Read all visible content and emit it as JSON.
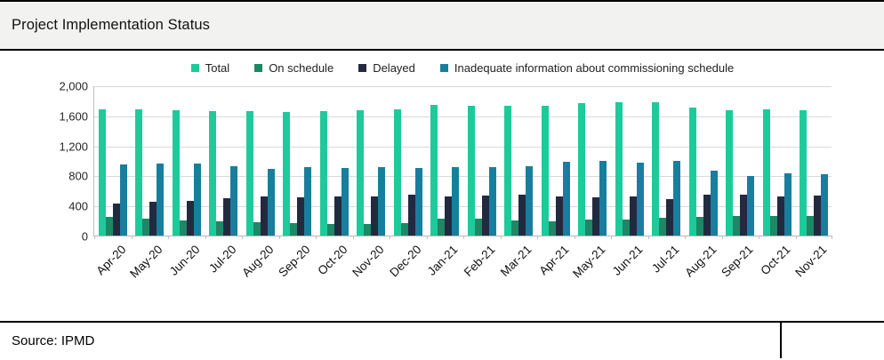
{
  "header": {
    "title": "Project Implementation Status"
  },
  "footer": {
    "source": "Source: IPMD"
  },
  "colors": {
    "total": "#1dcb9a",
    "on_schedule": "#1d8766",
    "delayed": "#222a40",
    "inadequate": "#177f9d",
    "gridline": "#d9d9d9",
    "title_band_bg": "#f2f2f1"
  },
  "chart_data": {
    "type": "bar",
    "title": "Project Implementation Status",
    "xlabel": "",
    "ylabel": "",
    "ylim": [
      0,
      2000
    ],
    "y_ticks": [
      0,
      400,
      800,
      1200,
      1600,
      2000
    ],
    "y_tick_labels": [
      "0",
      "400",
      "800",
      "1,200",
      "1,600",
      "2,000"
    ],
    "grid": true,
    "legend_position": "top",
    "categories": [
      "Apr-20",
      "May-20",
      "Jun-20",
      "Jul-20",
      "Aug-20",
      "Sep-20",
      "Oct-20",
      "Nov-20",
      "Dec-20",
      "Jan-21",
      "Feb-21",
      "Mar-21",
      "Apr-21",
      "May-21",
      "Jun-21",
      "Jul-21",
      "Aug-21",
      "Sep-21",
      "Oct-21",
      "Nov-21"
    ],
    "series": [
      {
        "name": "Total",
        "color": "#1dcb9a",
        "values": [
          1675,
          1675,
          1670,
          1660,
          1652,
          1648,
          1652,
          1666,
          1675,
          1734,
          1727,
          1731,
          1723,
          1766,
          1770,
          1778,
          1707,
          1668,
          1675,
          1671
        ]
      },
      {
        "name": "On schedule",
        "color": "#1d8766",
        "values": [
          245,
          222,
          196,
          186,
          172,
          163,
          157,
          150,
          165,
          222,
          226,
          205,
          190,
          215,
          212,
          240,
          245,
          256,
          260,
          257
        ]
      },
      {
        "name": "Delayed",
        "color": "#222a40",
        "values": [
          432,
          448,
          462,
          492,
          518,
          512,
          521,
          518,
          545,
          519,
          535,
          545,
          516,
          508,
          526,
          487,
          543,
          550,
          520,
          527
        ]
      },
      {
        "name": "Inadequate information about commissioning schedule",
        "color": "#177f9d",
        "values": [
          945,
          960,
          962,
          925,
          892,
          908,
          905,
          915,
          905,
          913,
          913,
          924,
          981,
          990,
          965,
          995,
          864,
          796,
          827,
          820
        ]
      }
    ]
  }
}
